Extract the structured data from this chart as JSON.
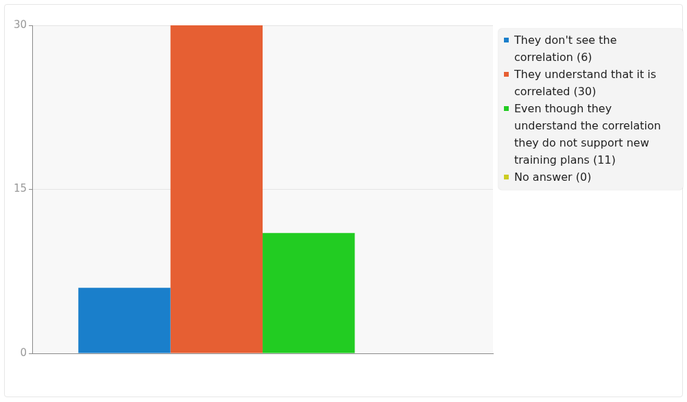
{
  "chart_data": {
    "type": "bar",
    "categories": [
      null
    ],
    "series": [
      {
        "name": "They don't see the correlation (6)",
        "color": "#1a7fcb",
        "values": [
          6
        ]
      },
      {
        "name": "They understand that it is correlated (30)",
        "color": "#e65f33",
        "values": [
          30
        ]
      },
      {
        "name": "Even though they understand the correlation they do not support new training plans (11)",
        "color": "#22cc22",
        "values": [
          11
        ]
      },
      {
        "name": "No answer (0)",
        "color": "#cccc22",
        "values": [
          0
        ]
      }
    ],
    "ylim": [
      0,
      30
    ],
    "yticks": [
      0,
      15,
      30
    ],
    "grid": "y",
    "legend": "right"
  }
}
